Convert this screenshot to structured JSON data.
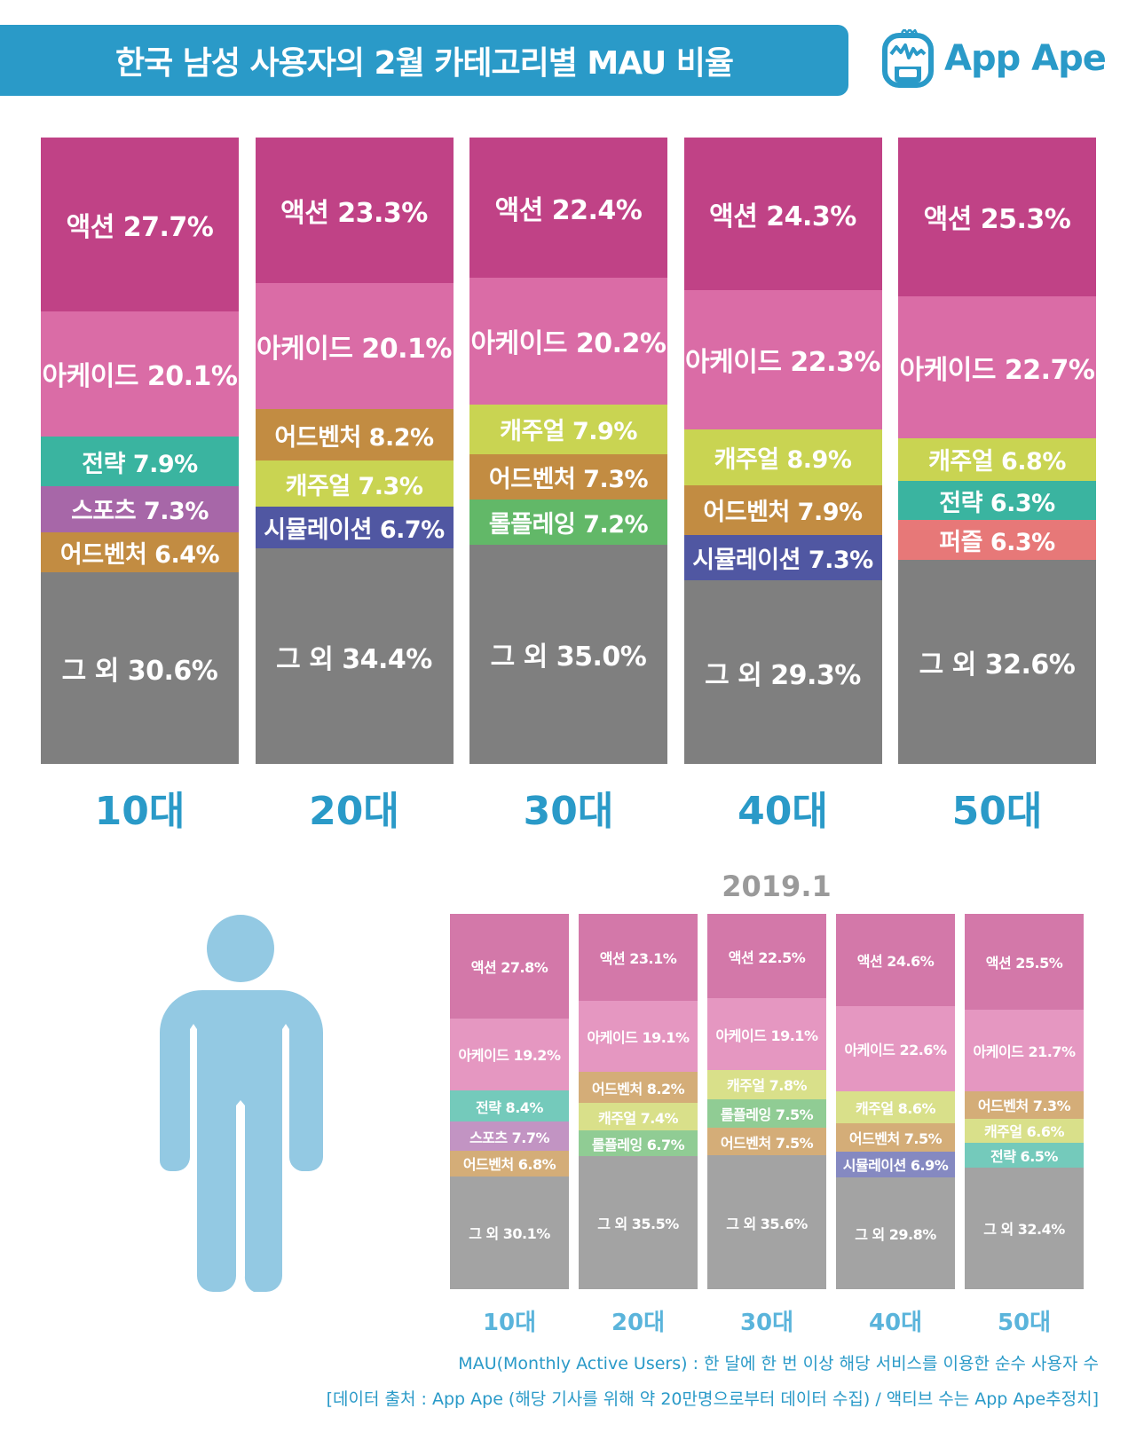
{
  "header": {
    "title": "한국 남성 사용자의 2월 카테고리별 MAU 비율",
    "logo_text": "App Ape",
    "logo_icon": "app-ape-monkey-icon"
  },
  "colors": {
    "title_bar": "#2a9ac8",
    "age_label": "#2a9ac8",
    "person_icon": "#93c9e3",
    "main": {
      "액션": "#c04286",
      "아케이드": "#da6ca6",
      "전략": "#3ab4a0",
      "스포츠": "#a767a8",
      "어드벤처": "#c28c42",
      "캐주얼": "#c9d452",
      "시뮬레이션": "#5057a2",
      "롤플레잉": "#62b868",
      "퍼즐": "#e77878",
      "그 외": "#7f7f7f"
    },
    "prev": {
      "액션": "#d378a9",
      "아케이드": "#e597c1",
      "전략": "#74cabb",
      "스포츠": "#c294c3",
      "어드벤처": "#d4ad78",
      "캐주얼": "#d9e08a",
      "시뮬레이션": "#8589c1",
      "롤플레잉": "#90cc94",
      "퍼즐": "#eea0a0",
      "그 외": "#a3a3a3"
    }
  },
  "chart_data": [
    {
      "type": "bar",
      "stacked": true,
      "normalized": true,
      "title": "한국 남성 사용자의 2월 카테고리별 MAU 비율",
      "categories": [
        "10대",
        "20대",
        "30대",
        "40대",
        "50대"
      ],
      "unit": "%",
      "stacks": [
        [
          {
            "name": "액션",
            "value": 27.7,
            "label": "액션 27.7%"
          },
          {
            "name": "아케이드",
            "value": 20.1,
            "label": "아케이드 20.1%"
          },
          {
            "name": "전략",
            "value": 7.9,
            "label": "전략 7.9%"
          },
          {
            "name": "스포츠",
            "value": 7.3,
            "label": "스포츠 7.3%"
          },
          {
            "name": "어드벤처",
            "value": 6.4,
            "label": "어드벤처 6.4%"
          },
          {
            "name": "그 외",
            "value": 30.6,
            "label": "그 외 30.6%"
          }
        ],
        [
          {
            "name": "액션",
            "value": 23.3,
            "label": "액션 23.3%"
          },
          {
            "name": "아케이드",
            "value": 20.1,
            "label": "아케이드 20.1%"
          },
          {
            "name": "어드벤처",
            "value": 8.2,
            "label": "어드벤처 8.2%"
          },
          {
            "name": "캐주얼",
            "value": 7.3,
            "label": "캐주얼 7.3%"
          },
          {
            "name": "시뮬레이션",
            "value": 6.7,
            "label": "시뮬레이션 6.7%"
          },
          {
            "name": "그 외",
            "value": 34.4,
            "label": "그 외 34.4%"
          }
        ],
        [
          {
            "name": "액션",
            "value": 22.4,
            "label": "액션 22.4%"
          },
          {
            "name": "아케이드",
            "value": 20.2,
            "label": "아케이드 20.2%"
          },
          {
            "name": "캐주얼",
            "value": 7.9,
            "label": "캐주얼 7.9%"
          },
          {
            "name": "어드벤처",
            "value": 7.3,
            "label": "어드벤처 7.3%"
          },
          {
            "name": "롤플레잉",
            "value": 7.2,
            "label": "롤플레잉 7.2%"
          },
          {
            "name": "그 외",
            "value": 35.0,
            "label": "그 외 35.0%"
          }
        ],
        [
          {
            "name": "액션",
            "value": 24.3,
            "label": "액션 24.3%"
          },
          {
            "name": "아케이드",
            "value": 22.3,
            "label": "아케이드 22.3%"
          },
          {
            "name": "캐주얼",
            "value": 8.9,
            "label": "캐주얼 8.9%"
          },
          {
            "name": "어드벤처",
            "value": 7.9,
            "label": "어드벤처 7.9%"
          },
          {
            "name": "시뮬레이션",
            "value": 7.3,
            "label": "시뮬레이션 7.3%"
          },
          {
            "name": "그 외",
            "value": 29.3,
            "label": "그 외 29.3%"
          }
        ],
        [
          {
            "name": "액션",
            "value": 25.3,
            "label": "액션 25.3%"
          },
          {
            "name": "아케이드",
            "value": 22.7,
            "label": "아케이드 22.7%"
          },
          {
            "name": "캐주얼",
            "value": 6.8,
            "label": "캐주얼 6.8%"
          },
          {
            "name": "전략",
            "value": 6.3,
            "label": "전략 6.3%"
          },
          {
            "name": "퍼즐",
            "value": 6.3,
            "label": "퍼즐 6.3%"
          },
          {
            "name": "그 외",
            "value": 32.6,
            "label": "그 외 32.6%"
          }
        ]
      ]
    },
    {
      "type": "bar",
      "stacked": true,
      "normalized": true,
      "title": "2019.1",
      "categories": [
        "10대",
        "20대",
        "30대",
        "40대",
        "50대"
      ],
      "unit": "%",
      "stacks": [
        [
          {
            "name": "액션",
            "value": 27.8,
            "label": "액션 27.8%"
          },
          {
            "name": "아케이드",
            "value": 19.2,
            "label": "아케이드 19.2%"
          },
          {
            "name": "전략",
            "value": 8.4,
            "label": "전략 8.4%"
          },
          {
            "name": "스포츠",
            "value": 7.7,
            "label": "스포츠 7.7%"
          },
          {
            "name": "어드벤처",
            "value": 6.8,
            "label": "어드벤처 6.8%"
          },
          {
            "name": "그 외",
            "value": 30.1,
            "label": "그 외 30.1%"
          }
        ],
        [
          {
            "name": "액션",
            "value": 23.1,
            "label": "액션 23.1%"
          },
          {
            "name": "아케이드",
            "value": 19.1,
            "label": "아케이드 19.1%"
          },
          {
            "name": "어드벤처",
            "value": 8.2,
            "label": "어드벤처 8.2%"
          },
          {
            "name": "캐주얼",
            "value": 7.4,
            "label": "캐주얼 7.4%"
          },
          {
            "name": "롤플레잉",
            "value": 6.7,
            "label": "롤플레잉 6.7%"
          },
          {
            "name": "그 외",
            "value": 35.5,
            "label": "그 외 35.5%"
          }
        ],
        [
          {
            "name": "액션",
            "value": 22.5,
            "label": "액션 22.5%"
          },
          {
            "name": "아케이드",
            "value": 19.1,
            "label": "아케이드 19.1%"
          },
          {
            "name": "캐주얼",
            "value": 7.8,
            "label": "캐주얼 7.8%"
          },
          {
            "name": "롤플레잉",
            "value": 7.5,
            "label": "롤플레잉 7.5%"
          },
          {
            "name": "어드벤처",
            "value": 7.5,
            "label": "어드벤처 7.5%"
          },
          {
            "name": "그 외",
            "value": 35.6,
            "label": "그 외 35.6%"
          }
        ],
        [
          {
            "name": "액션",
            "value": 24.6,
            "label": "액션 24.6%"
          },
          {
            "name": "아케이드",
            "value": 22.6,
            "label": "아케이드 22.6%"
          },
          {
            "name": "캐주얼",
            "value": 8.6,
            "label": "캐주얼 8.6%"
          },
          {
            "name": "어드벤처",
            "value": 7.5,
            "label": "어드벤처 7.5%"
          },
          {
            "name": "시뮬레이션",
            "value": 6.9,
            "label": "시뮬레이션 6.9%"
          },
          {
            "name": "그 외",
            "value": 29.8,
            "label": "그 외 29.8%"
          }
        ],
        [
          {
            "name": "액션",
            "value": 25.5,
            "label": "액션 25.5%"
          },
          {
            "name": "아케이드",
            "value": 21.7,
            "label": "아케이드 21.7%"
          },
          {
            "name": "어드벤처",
            "value": 7.3,
            "label": "어드벤처 7.3%"
          },
          {
            "name": "캐주얼",
            "value": 6.6,
            "label": "캐주얼 6.6%"
          },
          {
            "name": "전략",
            "value": 6.5,
            "label": "전략 6.5%"
          },
          {
            "name": "그 외",
            "value": 32.4,
            "label": "그 외 32.4%"
          }
        ]
      ]
    }
  ],
  "prev_section": {
    "title": "2019.1",
    "icon": "male-person-icon"
  },
  "footnotes": {
    "line1": "MAU(Monthly Active Users) : 한 달에 한 번 이상 해당 서비스를 이용한 순수 사용자 수",
    "line2": "[데이터 출처 : App Ape (해당 기사를 위해 약 20만명으로부터 데이터 수집) / 액티브 수는 App Ape추정치]"
  }
}
